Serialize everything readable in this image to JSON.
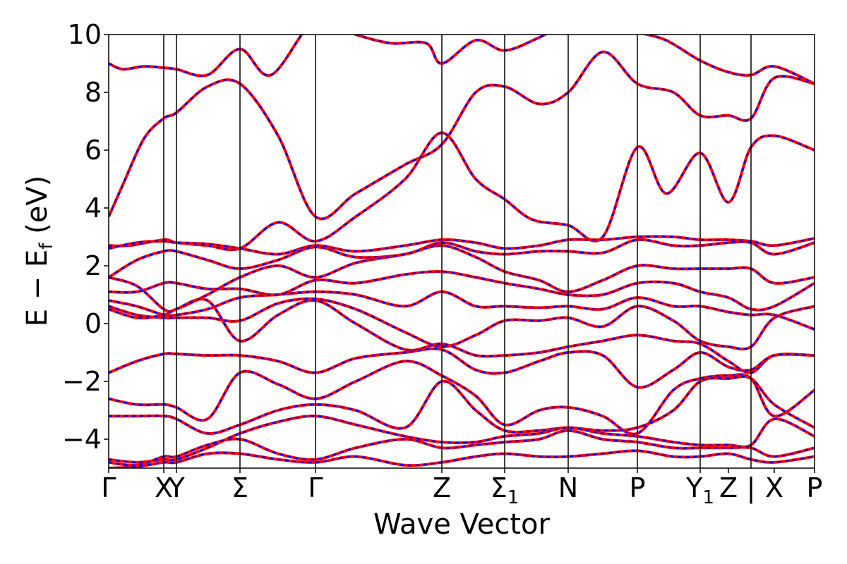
{
  "chart_data": {
    "type": "line",
    "xlabel": "Wave Vector",
    "ylabel": "E − E",
    "ylabel_sub": "f",
    "ylabel_unit": " (eV)",
    "ylim": [
      -5,
      10
    ],
    "yticks": [
      10,
      8,
      6,
      4,
      2,
      0,
      -2,
      -4
    ],
    "ytick_labels": [
      "10",
      "8",
      "6",
      "4",
      "2",
      "0",
      "−2",
      "−4"
    ],
    "xlim": [
      0,
      1
    ],
    "kpoints": [
      {
        "base": "Γ",
        "sub": "",
        "x": 0.0
      },
      {
        "base": "X",
        "sub": "",
        "x": 0.078
      },
      {
        "base": "Y",
        "sub": "",
        "x": 0.096
      },
      {
        "base": "Σ",
        "sub": "",
        "x": 0.186
      },
      {
        "base": "Γ",
        "sub": "",
        "x": 0.293
      },
      {
        "base": "Z",
        "sub": "",
        "x": 0.472
      },
      {
        "base": "Σ",
        "sub": "1",
        "x": 0.561
      },
      {
        "base": "N",
        "sub": "",
        "x": 0.651
      },
      {
        "base": "P",
        "sub": "",
        "x": 0.749
      },
      {
        "base": "Y",
        "sub": "1",
        "x": 0.838
      },
      {
        "base": "Z",
        "sub": "",
        "x": 0.878
      },
      {
        "base": "|",
        "sub": "",
        "x": 0.91
      },
      {
        "base": "X",
        "sub": "",
        "x": 0.943
      },
      {
        "base": "P",
        "sub": "",
        "x": 1.0
      }
    ],
    "vlines": [
      0.078,
      0.096,
      0.186,
      0.293,
      0.472,
      0.561,
      0.651,
      0.749,
      0.838,
      0.91
    ],
    "series_style": {
      "primary_color": "#ff0000",
      "overlay_color": "#0000ff",
      "overlay_dashed": true
    },
    "bands": [
      {
        "x": [
          0,
          0.02,
          0.05,
          0.078,
          0.096,
          0.14,
          0.186,
          0.24,
          0.293,
          0.35,
          0.42,
          0.472,
          0.52,
          0.561,
          0.61,
          0.651,
          0.7,
          0.749,
          0.8,
          0.838,
          0.878,
          0.91,
          0.943,
          1.0
        ],
        "y": [
          3.7,
          4.8,
          6.4,
          7.1,
          7.3,
          8.2,
          8.3,
          6.5,
          3.7,
          4.5,
          5.5,
          6.2,
          8.0,
          8.2,
          7.6,
          8.0,
          9.4,
          8.3,
          8.0,
          7.2,
          7.2,
          7.1,
          8.5,
          8.3
        ]
      },
      {
        "x": [
          0,
          0.03,
          0.078,
          0.096,
          0.14,
          0.186,
          0.24,
          0.293,
          0.35,
          0.42,
          0.472,
          0.52,
          0.561,
          0.6,
          0.651,
          0.7,
          0.749,
          0.79,
          0.838,
          0.878,
          0.91,
          0.943,
          1.0
        ],
        "y": [
          2.7,
          2.7,
          2.9,
          2.8,
          2.7,
          2.6,
          3.5,
          2.85,
          3.7,
          5.0,
          6.6,
          5.0,
          4.3,
          3.6,
          3.4,
          3.0,
          6.1,
          4.5,
          5.9,
          4.2,
          6.1,
          6.5,
          6.0
        ]
      },
      {
        "x": [
          0,
          0.04,
          0.078,
          0.096,
          0.14,
          0.186,
          0.24,
          0.293,
          0.35,
          0.42,
          0.472,
          0.52,
          0.561,
          0.61,
          0.651,
          0.7,
          0.749,
          0.8,
          0.838,
          0.878,
          0.91,
          0.943,
          1.0
        ],
        "y": [
          2.6,
          2.8,
          2.85,
          2.8,
          2.75,
          2.6,
          2.4,
          2.7,
          2.5,
          2.7,
          2.9,
          2.8,
          2.6,
          2.7,
          2.9,
          2.9,
          3.0,
          3.0,
          2.9,
          2.9,
          2.85,
          2.7,
          2.95
        ]
      },
      {
        "x": [
          0,
          0.04,
          0.078,
          0.096,
          0.14,
          0.186,
          0.24,
          0.293,
          0.35,
          0.42,
          0.472,
          0.52,
          0.561,
          0.61,
          0.651,
          0.7,
          0.749,
          0.8,
          0.838,
          0.878,
          0.91,
          0.943,
          1.0
        ],
        "y": [
          1.6,
          2.2,
          2.5,
          2.5,
          2.2,
          1.9,
          2.2,
          2.65,
          2.3,
          2.4,
          2.8,
          2.5,
          2.4,
          2.5,
          2.5,
          2.45,
          2.9,
          2.7,
          2.7,
          2.8,
          2.8,
          2.4,
          2.8
        ]
      },
      {
        "x": [
          0,
          0.04,
          0.078,
          0.096,
          0.14,
          0.186,
          0.24,
          0.293,
          0.35,
          0.42,
          0.472,
          0.52,
          0.561,
          0.61,
          0.651,
          0.7,
          0.749,
          0.8,
          0.838,
          0.878,
          0.91,
          0.943,
          1.0
        ],
        "y": [
          1.6,
          1.3,
          0.5,
          0.5,
          1.0,
          1.6,
          2.0,
          1.6,
          2.1,
          2.4,
          2.7,
          2.3,
          1.8,
          1.5,
          1.1,
          1.5,
          2.0,
          1.9,
          1.9,
          1.9,
          1.9,
          1.4,
          1.6
        ]
      },
      {
        "x": [
          0,
          0.04,
          0.078,
          0.096,
          0.14,
          0.186,
          0.24,
          0.293,
          0.35,
          0.42,
          0.472,
          0.52,
          0.561,
          0.61,
          0.651,
          0.7,
          0.749,
          0.8,
          0.838,
          0.878,
          0.91,
          0.943,
          1.0
        ],
        "y": [
          1.1,
          1.1,
          1.4,
          1.4,
          1.2,
          1.2,
          1.0,
          1.5,
          1.4,
          1.7,
          1.8,
          1.6,
          1.4,
          1.2,
          1.0,
          1.0,
          1.4,
          1.4,
          1.1,
          0.9,
          0.5,
          0.6,
          1.4
        ]
      },
      {
        "x": [
          0,
          0.04,
          0.078,
          0.096,
          0.14,
          0.186,
          0.24,
          0.293,
          0.35,
          0.42,
          0.472,
          0.52,
          0.561,
          0.61,
          0.651,
          0.7,
          0.749,
          0.8,
          0.838,
          0.878,
          0.91,
          0.943,
          1.0
        ],
        "y": [
          0.8,
          0.6,
          0.3,
          0.3,
          0.5,
          0.9,
          1.0,
          1.1,
          1.0,
          0.6,
          1.1,
          0.6,
          0.6,
          0.55,
          0.6,
          0.5,
          0.9,
          0.6,
          0.6,
          0.4,
          0.3,
          0.3,
          -0.2
        ]
      },
      {
        "x": [
          0,
          0.04,
          0.078,
          0.096,
          0.14,
          0.186,
          0.24,
          0.293,
          0.35,
          0.42,
          0.472,
          0.52,
          0.561,
          0.61,
          0.651,
          0.7,
          0.749,
          0.8,
          0.838,
          0.878,
          0.91,
          0.943,
          1.0
        ],
        "y": [
          0.6,
          0.3,
          0.2,
          0.2,
          0.2,
          0.1,
          0.7,
          0.85,
          0.5,
          -0.3,
          -0.8,
          -0.4,
          0.1,
          0.1,
          0.2,
          -0.1,
          0.6,
          0.1,
          -0.6,
          -0.8,
          -0.8,
          0.2,
          0.6
        ]
      },
      {
        "x": [
          0,
          0.04,
          0.078,
          0.096,
          0.14,
          0.186,
          0.24,
          0.293,
          0.35,
          0.42,
          0.472,
          0.52,
          0.561,
          0.61,
          0.651,
          0.7,
          0.749,
          0.8,
          0.838,
          0.878,
          0.91,
          0.943,
          1.0
        ],
        "y": [
          0.5,
          0.2,
          0.3,
          0.5,
          0.8,
          -0.6,
          0.3,
          0.8,
          0.0,
          -0.9,
          -0.7,
          -1.1,
          -1.1,
          -1.0,
          -0.8,
          -0.6,
          -0.4,
          -0.6,
          -0.7,
          -1.3,
          -1.7,
          -1.1,
          -1.1
        ]
      },
      {
        "x": [
          0,
          0.04,
          0.078,
          0.096,
          0.14,
          0.186,
          0.24,
          0.293,
          0.35,
          0.42,
          0.472,
          0.52,
          0.561,
          0.61,
          0.651,
          0.7,
          0.749,
          0.8,
          0.838,
          0.878,
          0.91,
          0.943,
          1.0
        ],
        "y": [
          -1.7,
          -1.3,
          -1.05,
          -1.05,
          -1.1,
          -1.1,
          -1.3,
          -1.7,
          -1.2,
          -1.0,
          -0.9,
          -1.6,
          -1.7,
          -1.3,
          -1.0,
          -1.1,
          -2.2,
          -1.6,
          -1.0,
          -1.5,
          -1.6,
          -1.1,
          -1.1
        ]
      },
      {
        "x": [
          0,
          0.04,
          0.078,
          0.096,
          0.14,
          0.186,
          0.24,
          0.293,
          0.35,
          0.42,
          0.472,
          0.52,
          0.561,
          0.61,
          0.651,
          0.7,
          0.749,
          0.8,
          0.838,
          0.878,
          0.91,
          0.943,
          1.0
        ],
        "y": [
          -2.6,
          -2.8,
          -2.8,
          -2.9,
          -3.3,
          -1.7,
          -2.1,
          -2.6,
          -2.0,
          -1.3,
          -1.8,
          -2.5,
          -3.5,
          -3.0,
          -2.9,
          -3.2,
          -3.8,
          -2.3,
          -1.9,
          -1.8,
          -1.9,
          -3.2,
          -2.3
        ]
      },
      {
        "x": [
          0,
          0.04,
          0.078,
          0.096,
          0.14,
          0.186,
          0.24,
          0.293,
          0.35,
          0.42,
          0.472,
          0.52,
          0.561,
          0.61,
          0.651,
          0.7,
          0.749,
          0.8,
          0.838,
          0.878,
          0.91,
          0.943,
          1.0
        ],
        "y": [
          -3.2,
          -3.2,
          -3.2,
          -3.3,
          -3.8,
          -3.5,
          -3.0,
          -2.8,
          -3.0,
          -3.6,
          -2.0,
          -3.0,
          -3.7,
          -3.7,
          -3.6,
          -3.7,
          -3.6,
          -3.0,
          -2.0,
          -1.9,
          -1.9,
          -2.8,
          -3.6
        ]
      },
      {
        "x": [
          0,
          0.04,
          0.078,
          0.096,
          0.14,
          0.186,
          0.24,
          0.293,
          0.35,
          0.42,
          0.472,
          0.52,
          0.561,
          0.61,
          0.651,
          0.7,
          0.749,
          0.8,
          0.838,
          0.878,
          0.91,
          0.943,
          1.0
        ],
        "y": [
          -4.7,
          -4.8,
          -4.7,
          -4.7,
          -4.3,
          -3.8,
          -3.4,
          -3.2,
          -3.5,
          -3.9,
          -4.1,
          -4.1,
          -3.9,
          -3.8,
          -3.6,
          -3.8,
          -3.9,
          -4.1,
          -4.2,
          -4.2,
          -4.2,
          -3.3,
          -3.9
        ]
      },
      {
        "x": [
          0,
          0.04,
          0.078,
          0.096,
          0.14,
          0.186,
          0.24,
          0.293,
          0.35,
          0.42,
          0.472,
          0.52,
          0.561,
          0.61,
          0.651,
          0.7,
          0.749,
          0.8,
          0.838,
          0.878,
          0.91,
          0.943,
          1.0
        ],
        "y": [
          -4.8,
          -4.9,
          -4.6,
          -4.6,
          -4.2,
          -4.0,
          -4.5,
          -4.7,
          -4.3,
          -4.0,
          -4.3,
          -4.2,
          -4.1,
          -4.0,
          -3.7,
          -4.0,
          -4.1,
          -4.3,
          -4.3,
          -4.3,
          -4.3,
          -4.6,
          -4.3
        ]
      },
      {
        "x": [
          0,
          0.04,
          0.078,
          0.096,
          0.14,
          0.186,
          0.24,
          0.293,
          0.35,
          0.42,
          0.472,
          0.52,
          0.561,
          0.61,
          0.651,
          0.7,
          0.749,
          0.8,
          0.838,
          0.878,
          0.91,
          0.943,
          1.0
        ],
        "y": [
          -5.0,
          -4.95,
          -4.8,
          -4.8,
          -4.5,
          -4.5,
          -4.7,
          -4.8,
          -4.6,
          -4.9,
          -4.8,
          -4.6,
          -4.5,
          -4.6,
          -4.6,
          -4.5,
          -4.4,
          -4.6,
          -4.6,
          -4.5,
          -4.7,
          -4.8,
          -4.6
        ]
      },
      {
        "x": [
          0,
          0.02,
          0.05,
          0.078,
          0.096,
          0.14,
          0.186,
          0.23,
          0.293,
          0.35,
          0.4,
          0.45,
          0.472,
          0.52,
          0.561,
          0.61,
          0.651,
          0.7,
          0.749,
          0.79,
          0.838,
          0.878,
          0.91,
          0.943,
          1.0
        ],
        "y": [
          9.0,
          8.8,
          8.9,
          8.85,
          8.8,
          8.6,
          9.5,
          8.6,
          10.5,
          10.0,
          9.7,
          9.7,
          9.0,
          9.8,
          9.45,
          9.9,
          10.4,
          10.6,
          10.1,
          9.8,
          9.1,
          8.7,
          8.6,
          8.9,
          8.3
        ]
      }
    ]
  }
}
